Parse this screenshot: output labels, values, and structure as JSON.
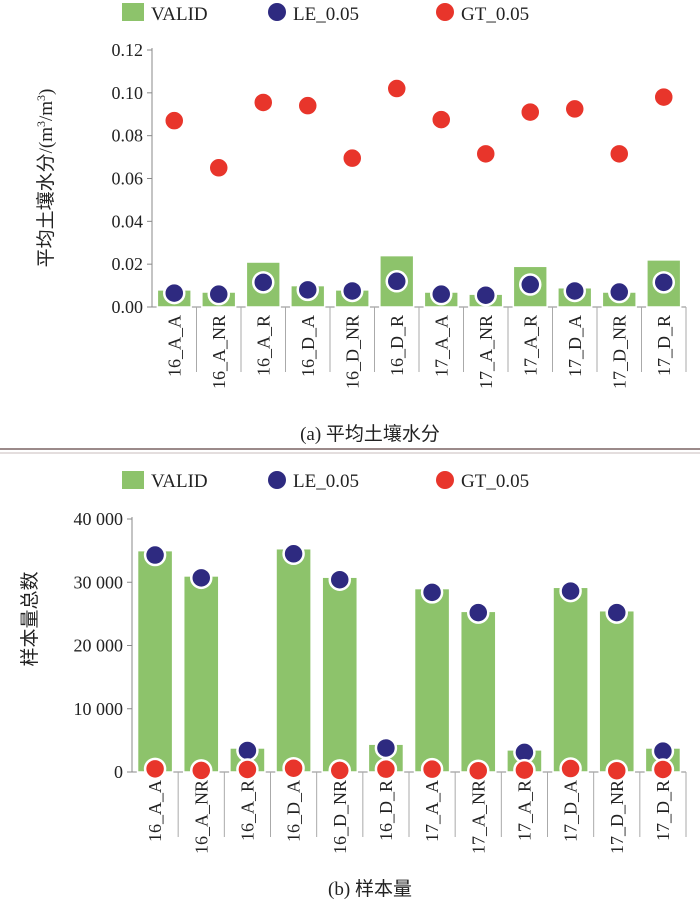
{
  "legend": {
    "valid": "VALID",
    "le": "LE_0.05",
    "gt": "GT_0.05"
  },
  "colors": {
    "valid_fill": "#8dc36b",
    "valid_stroke": "#6aa84f",
    "le": "#2e2a80",
    "gt": "#e8352b",
    "divider": "#9b8a8a"
  },
  "chart_data": [
    {
      "type": "bar",
      "caption": "(a) 平均土壤水分",
      "ylabel_main": "平均土壤水分/(m",
      "ylabel_sup1": "3",
      "ylabel_mid": "/m",
      "ylabel_sup2": "3",
      "ylabel_end": ")",
      "ylim": [
        0,
        0.12
      ],
      "yticks": [
        "0.00",
        "0.02",
        "0.04",
        "0.06",
        "0.08",
        "0.10",
        "0.12"
      ],
      "categories": [
        "16_A_A",
        "16_A_NR",
        "16_A_R",
        "16_D_A",
        "16_D_NR",
        "16_D_R",
        "17_A_A",
        "17_A_NR",
        "17_A_R",
        "17_D_A",
        "17_D_NR",
        "17_D_R"
      ],
      "series": [
        {
          "name": "VALID",
          "kind": "bar",
          "values": [
            0.008,
            0.007,
            0.021,
            0.01,
            0.008,
            0.024,
            0.007,
            0.006,
            0.019,
            0.009,
            0.007,
            0.022
          ]
        },
        {
          "name": "LE_0.05",
          "kind": "marker",
          "values": [
            0.0065,
            0.006,
            0.0115,
            0.008,
            0.0075,
            0.012,
            0.006,
            0.0055,
            0.0105,
            0.0075,
            0.007,
            0.0115
          ]
        },
        {
          "name": "GT_0.05",
          "kind": "marker",
          "values": [
            0.087,
            0.065,
            0.0955,
            0.094,
            0.0695,
            0.102,
            0.0875,
            0.0715,
            0.091,
            0.0925,
            0.0715,
            0.098
          ]
        }
      ]
    },
    {
      "type": "bar",
      "caption": "(b) 样本量",
      "ylabel": "样本量总数",
      "ylim": [
        0,
        40000
      ],
      "yticks": [
        "0",
        "10 000",
        "20 000",
        "30 000",
        "40 000"
      ],
      "categories": [
        "16_A_A",
        "16_A_NR",
        "16_A_R",
        "16_D_A",
        "16_D_NR",
        "16_D_R",
        "17_A_A",
        "17_A_NR",
        "17_A_R",
        "17_D_A",
        "17_D_NR",
        "17_D_R"
      ],
      "series": [
        {
          "name": "VALID",
          "kind": "bar",
          "values": [
            35000,
            31000,
            3800,
            35300,
            30800,
            4400,
            29000,
            25400,
            3500,
            29200,
            25500,
            3800
          ]
        },
        {
          "name": "LE_0.05",
          "kind": "marker",
          "values": [
            34300,
            30700,
            3400,
            34500,
            30400,
            3800,
            28400,
            25200,
            3100,
            28600,
            25200,
            3300
          ]
        },
        {
          "name": "GT_0.05",
          "kind": "marker",
          "values": [
            500,
            250,
            400,
            600,
            250,
            450,
            450,
            200,
            300,
            550,
            200,
            400
          ]
        }
      ]
    }
  ]
}
